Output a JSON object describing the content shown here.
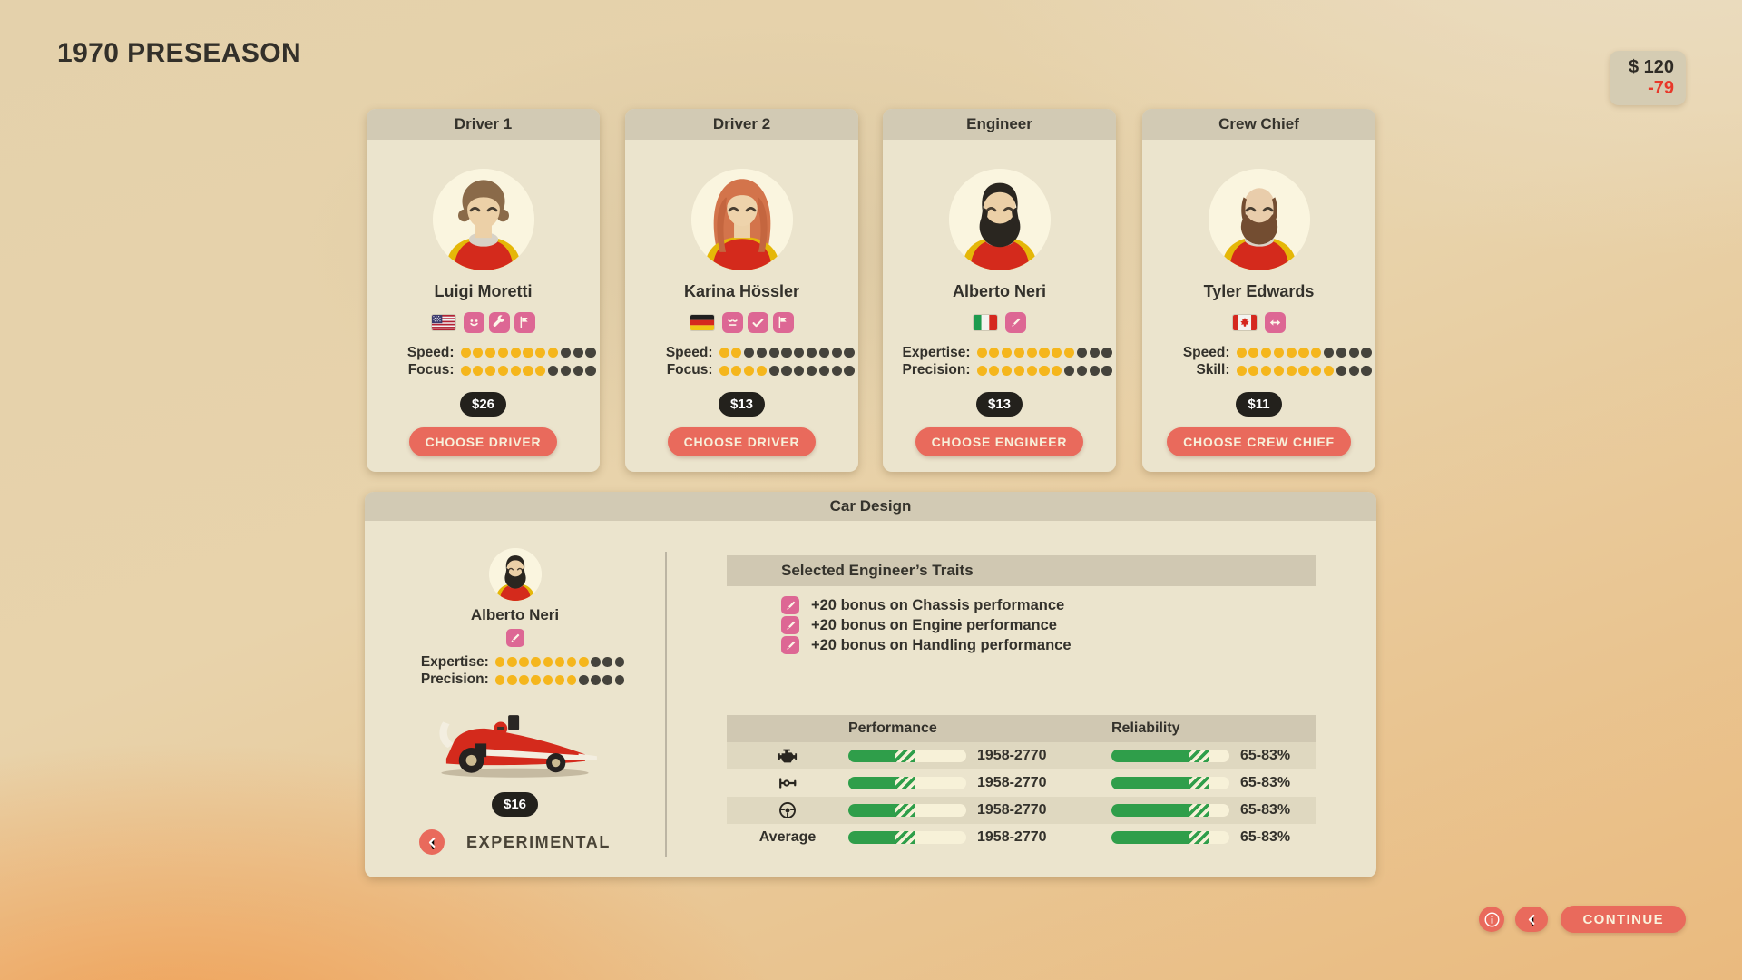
{
  "page": {
    "title": "1970 PRESEASON"
  },
  "budget": {
    "amount": "$ 120",
    "delta": "-79"
  },
  "cards": [
    {
      "role": "Driver 1",
      "name": "Luigi Moretti",
      "avatar": "luigi",
      "flag": "us",
      "traits": [
        "happy-face",
        "wrench",
        "flag"
      ],
      "stats": [
        {
          "label": "Speed:",
          "value": 8,
          "max": 11
        },
        {
          "label": "Focus:",
          "value": 7,
          "max": 11
        }
      ],
      "price": "$26",
      "button": "CHOOSE DRIVER"
    },
    {
      "role": "Driver 2",
      "name": "Karina Hössler",
      "avatar": "karina",
      "flag": "de",
      "traits": [
        "tired-face",
        "check",
        "flag"
      ],
      "stats": [
        {
          "label": "Speed:",
          "value": 2,
          "max": 11
        },
        {
          "label": "Focus:",
          "value": 4,
          "max": 11
        }
      ],
      "price": "$13",
      "button": "CHOOSE DRIVER"
    },
    {
      "role": "Engineer",
      "name": "Alberto Neri",
      "avatar": "alberto",
      "flag": "it",
      "traits": [
        "pencil"
      ],
      "stats": [
        {
          "label": "Expertise:",
          "value": 8,
          "max": 11
        },
        {
          "label": "Precision:",
          "value": 7,
          "max": 11
        }
      ],
      "price": "$13",
      "button": "CHOOSE ENGINEER"
    },
    {
      "role": "Crew Chief",
      "name": "Tyler Edwards",
      "avatar": "tyler",
      "flag": "ca",
      "traits": [
        "arrows-horizontal"
      ],
      "stats": [
        {
          "label": "Speed:",
          "value": 7,
          "max": 11
        },
        {
          "label": "Skill:",
          "value": 8,
          "max": 11
        }
      ],
      "price": "$11",
      "button": "CHOOSE CREW CHIEF"
    }
  ],
  "car_design": {
    "title": "Car Design",
    "engineer": {
      "name": "Alberto Neri",
      "avatar": "alberto",
      "trait": "pencil",
      "stats": [
        {
          "label": "Expertise:",
          "value": 8,
          "max": 11
        },
        {
          "label": "Precision:",
          "value": 7,
          "max": 11
        }
      ]
    },
    "car_price": "$16",
    "mode": {
      "arrow_icon": "chevron-left",
      "label": "EXPERIMENTAL"
    },
    "traits_panel": {
      "title": "Selected Engineer’s Traits",
      "items": [
        {
          "icon": "pencil",
          "text": "+20 bonus on Chassis performance"
        },
        {
          "icon": "pencil",
          "text": "+20 bonus on Engine performance"
        },
        {
          "icon": "pencil",
          "text": "+20 bonus on Handling performance"
        }
      ]
    },
    "table": {
      "headers": {
        "performance": "Performance",
        "reliability": "Reliability"
      },
      "rows": [
        {
          "icon": "engine",
          "label": "",
          "performance": {
            "text": "1958-2770",
            "solid_pct": 40,
            "hatch_pct": 56
          },
          "reliability": {
            "text": "65-83%",
            "solid_pct": 65,
            "hatch_pct": 83
          }
        },
        {
          "icon": "chassis",
          "label": "",
          "performance": {
            "text": "1958-2770",
            "solid_pct": 40,
            "hatch_pct": 56
          },
          "reliability": {
            "text": "65-83%",
            "solid_pct": 65,
            "hatch_pct": 83
          }
        },
        {
          "icon": "steering-wheel",
          "label": "",
          "performance": {
            "text": "1958-2770",
            "solid_pct": 40,
            "hatch_pct": 56
          },
          "reliability": {
            "text": "65-83%",
            "solid_pct": 65,
            "hatch_pct": 83
          }
        },
        {
          "icon": "",
          "label": "Average",
          "performance": {
            "text": "1958-2770",
            "solid_pct": 40,
            "hatch_pct": 56
          },
          "reliability": {
            "text": "65-83%",
            "solid_pct": 65,
            "hatch_pct": 83
          }
        }
      ]
    }
  },
  "footer": {
    "info_icon": "info",
    "back_icon": "chevron-left",
    "continue_label": "CONTINUE"
  },
  "colors": {
    "accent_coral": "#e96a5c",
    "chip_pink": "#dd6794",
    "dot_on": "#f5b61c",
    "dot_off": "#45433c",
    "bar_green": "#2f9e4a",
    "delta_red": "#e8382a",
    "panel_cream": "#ebe4cd",
    "band_gray": "#d2cab4"
  }
}
